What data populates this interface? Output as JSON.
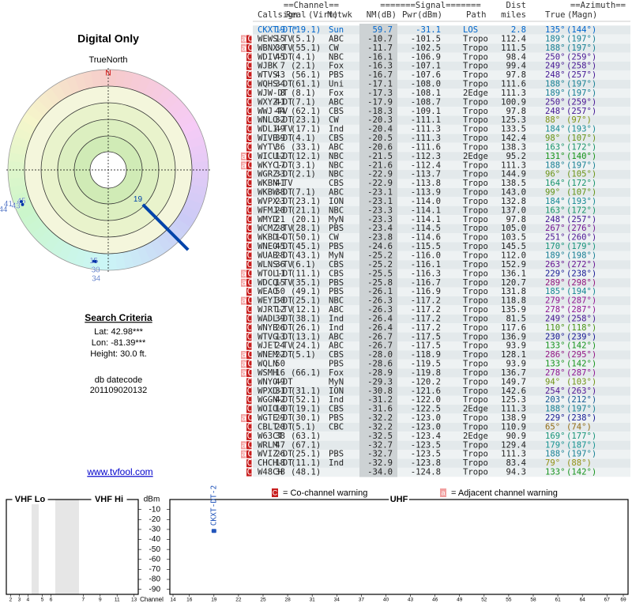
{
  "left": {
    "title": "Digital Only",
    "north_label": "TrueNorth",
    "north": "N",
    "search_title": "Search Criteria",
    "lat": "Lat: 42.98***",
    "lon": "Lon: -81.39***",
    "height": "Height: 30.0 ft.",
    "db_label": "db datecode",
    "db_code": "201109020132",
    "link": "www.tvfool.com"
  },
  "polar": {
    "markers": [
      {
        "label": "19",
        "azimuth": 135
      },
      {
        "label": "15",
        "azimuth": 189
      },
      {
        "label": "30",
        "azimuth": 188
      },
      {
        "label": "34",
        "azimuth": 188
      },
      {
        "label": "45",
        "azimuth": 250
      },
      {
        "label": "43",
        "azimuth": 248
      },
      {
        "label": "41",
        "azimuth": 250
      },
      {
        "label": "44",
        "azimuth": 248
      }
    ]
  },
  "table": {
    "group_headers": [
      "==Channel==",
      "=======Signal=======",
      "Dist",
      "==Azimuth=="
    ],
    "columns": [
      "Callsign",
      "Real",
      "(Virt)",
      "Netwk",
      "NM(dB)",
      "Pwr(dBm)",
      "Path",
      "miles",
      "True",
      "(Magn)"
    ],
    "rows": [
      {
        "callsign": "CKXT-DT*",
        "real": "19",
        "virt": "(19.1)",
        "netwk": "Sun",
        "nm": "59.7",
        "pwr": "-31.1",
        "path": "LOS",
        "dist": "2.8",
        "true": "135°",
        "magn": "(144°)"
      },
      {
        "flags": "aC",
        "callsign": "WEWS-TV",
        "real": "15",
        "virt": "(5.1)",
        "netwk": "ABC",
        "nm": "-10.7",
        "pwr": "-101.5",
        "path": "Tropo",
        "dist": "112.4",
        "true": "189°",
        "magn": "(197°)"
      },
      {
        "flags": "aC",
        "callsign": "WBNX-TV",
        "real": "30",
        "virt": "(55.1)",
        "netwk": "CW",
        "nm": "-11.7",
        "pwr": "-102.5",
        "path": "Tropo",
        "dist": "111.5",
        "true": "188°",
        "magn": "(197°)"
      },
      {
        "flags": "C",
        "callsign": "WDIV-DT",
        "real": "45",
        "virt": "(4.1)",
        "netwk": "NBC",
        "nm": "-16.1",
        "pwr": "-106.9",
        "path": "Tropo",
        "dist": "98.4",
        "true": "250°",
        "magn": "(259°)"
      },
      {
        "flags": "C",
        "callsign": "WJBK",
        "real": "7",
        "virt": "(2.1)",
        "netwk": "Fox",
        "nm": "-16.3",
        "pwr": "-107.1",
        "path": "Tropo",
        "dist": "99.4",
        "true": "249°",
        "magn": "(258°)"
      },
      {
        "flags": "C",
        "callsign": "WTVS",
        "real": "43",
        "virt": "(56.1)",
        "netwk": "PBS",
        "nm": "-16.7",
        "pwr": "-107.6",
        "path": "Tropo",
        "dist": "97.8",
        "true": "248°",
        "magn": "(257°)"
      },
      {
        "flags": "C",
        "callsign": "WQHS-DT",
        "real": "34",
        "virt": "(61.1)",
        "netwk": "Uni",
        "nm": "-17.1",
        "pwr": "-108.0",
        "path": "Tropo",
        "dist": "111.6",
        "true": "188°",
        "magn": "(197°)"
      },
      {
        "flags": "C",
        "callsign": "WJW-DT",
        "real": "8",
        "virt": "(8.1)",
        "netwk": "Fox",
        "nm": "-17.3",
        "pwr": "-108.1",
        "path": "2Edge",
        "dist": "111.3",
        "true": "189°",
        "magn": "(197°)"
      },
      {
        "flags": "C",
        "callsign": "WXYZ-DT",
        "real": "41",
        "virt": "(7.1)",
        "netwk": "ABC",
        "nm": "-17.9",
        "pwr": "-108.7",
        "path": "Tropo",
        "dist": "100.9",
        "true": "250°",
        "magn": "(259°)"
      },
      {
        "flags": "C",
        "callsign": "WWJ-TV",
        "real": "44",
        "virt": "(62.1)",
        "netwk": "CBS",
        "nm": "-18.3",
        "pwr": "-109.1",
        "path": "Tropo",
        "dist": "97.8",
        "true": "248°",
        "magn": "(257°)"
      },
      {
        "flags": "C",
        "callsign": "WNLO-DT",
        "real": "32",
        "virt": "(23.1)",
        "netwk": "CW",
        "nm": "-20.3",
        "pwr": "-111.1",
        "path": "Tropo",
        "dist": "125.3",
        "true": "88°",
        "magn": "(97°)"
      },
      {
        "flags": "C",
        "callsign": "WDLI-TV",
        "real": "49",
        "virt": "(17.1)",
        "netwk": "Ind",
        "nm": "-20.4",
        "pwr": "-111.3",
        "path": "Tropo",
        "dist": "133.5",
        "true": "184°",
        "magn": "(193°)"
      },
      {
        "flags": "C",
        "callsign": "WIVB-DT",
        "real": "39",
        "virt": "(4.1)",
        "netwk": "CBS",
        "nm": "-20.5",
        "pwr": "-111.3",
        "path": "Tropo",
        "dist": "142.4",
        "true": "98°",
        "magn": "(107°)"
      },
      {
        "flags": "C",
        "callsign": "WYTV",
        "real": "36",
        "virt": "(33.1)",
        "netwk": "ABC",
        "nm": "-20.6",
        "pwr": "-111.6",
        "path": "Tropo",
        "dist": "138.3",
        "true": "163°",
        "magn": "(172°)"
      },
      {
        "flags": "aC",
        "callsign": "WICU-DT",
        "real": "12",
        "virt": "(12.1)",
        "netwk": "NBC",
        "nm": "-21.5",
        "pwr": "-112.3",
        "path": "2Edge",
        "dist": "95.2",
        "true": "131°",
        "magn": "(140°)"
      },
      {
        "flags": "aC",
        "callsign": "WKYC-DT",
        "real": "17",
        "virt": "(3.1)",
        "netwk": "NBC",
        "nm": "-21.6",
        "pwr": "-112.4",
        "path": "Tropo",
        "dist": "111.3",
        "true": "188°",
        "magn": "(197°)"
      },
      {
        "flags": "C",
        "callsign": "WGRZ-DT",
        "real": "33",
        "virt": "(2.1)",
        "netwk": "NBC",
        "nm": "-22.9",
        "pwr": "-113.7",
        "path": "Tropo",
        "dist": "144.9",
        "true": "96°",
        "magn": "(105°)"
      },
      {
        "flags": "C",
        "callsign": "WKBN-TV",
        "real": "41",
        "netwk": "CBS",
        "nm": "-22.9",
        "pwr": "-113.8",
        "path": "Tropo",
        "dist": "138.5",
        "true": "164°",
        "magn": "(172°)"
      },
      {
        "flags": "C",
        "callsign": "WKBW-DT",
        "real": "38",
        "virt": "(7.1)",
        "netwk": "ABC",
        "nm": "-23.1",
        "pwr": "-113.9",
        "path": "Tropo",
        "dist": "143.0",
        "true": "99°",
        "magn": "(107°)"
      },
      {
        "flags": "C",
        "callsign": "WVPX-DT",
        "real": "23",
        "virt": "(23.1)",
        "netwk": "ION",
        "nm": "-23.1",
        "pwr": "-114.0",
        "path": "Tropo",
        "dist": "132.8",
        "true": "184°",
        "magn": "(193°)"
      },
      {
        "flags": "C",
        "callsign": "WFMJ-DT",
        "real": "20",
        "virt": "(21.1)",
        "netwk": "NBC",
        "nm": "-23.3",
        "pwr": "-114.1",
        "path": "Tropo",
        "dist": "137.0",
        "true": "163°",
        "magn": "(172°)"
      },
      {
        "flags": "C",
        "callsign": "WMYD",
        "real": "21",
        "virt": "(20.1)",
        "netwk": "MyN",
        "nm": "-23.3",
        "pwr": "-114.1",
        "path": "Tropo",
        "dist": "97.8",
        "true": "248°",
        "magn": "(257°)"
      },
      {
        "flags": "C",
        "callsign": "WCMZ-TV",
        "real": "28",
        "virt": "(28.1)",
        "netwk": "PBS",
        "nm": "-23.4",
        "pwr": "-114.5",
        "path": "Tropo",
        "dist": "105.0",
        "true": "267°",
        "magn": "(276°)"
      },
      {
        "flags": "C",
        "callsign": "WKBD-DT",
        "real": "14",
        "virt": "(50.1)",
        "netwk": "CW",
        "nm": "-23.8",
        "pwr": "-114.6",
        "path": "Tropo",
        "dist": "103.5",
        "true": "251°",
        "magn": "(260°)"
      },
      {
        "flags": "C",
        "callsign": "WNEO-DT",
        "real": "45",
        "virt": "(45.1)",
        "netwk": "PBS",
        "nm": "-24.6",
        "pwr": "-115.5",
        "path": "Tropo",
        "dist": "145.5",
        "true": "170°",
        "magn": "(179°)"
      },
      {
        "flags": "C",
        "callsign": "WUAB-DT",
        "real": "28",
        "virt": "(43.1)",
        "netwk": "MyN",
        "nm": "-25.2",
        "pwr": "-116.0",
        "path": "Tropo",
        "dist": "112.0",
        "true": "189°",
        "magn": "(198°)"
      },
      {
        "flags": "C",
        "callsign": "WLNS-TV",
        "real": "36",
        "virt": "(6.1)",
        "netwk": "CBS",
        "nm": "-25.2",
        "pwr": "-116.1",
        "path": "Tropo",
        "dist": "152.9",
        "true": "263°",
        "magn": "(272°)"
      },
      {
        "flags": "aC",
        "callsign": "WTOL-DT",
        "real": "11",
        "virt": "(11.1)",
        "netwk": "CBS",
        "nm": "-25.5",
        "pwr": "-116.3",
        "path": "Tropo",
        "dist": "136.1",
        "true": "229°",
        "magn": "(238°)"
      },
      {
        "flags": "aC",
        "callsign": "WDCQ-TV",
        "real": "15",
        "virt": "(35.1)",
        "netwk": "PBS",
        "nm": "-25.8",
        "pwr": "-116.7",
        "path": "Tropo",
        "dist": "120.7",
        "true": "289°",
        "magn": "(298°)"
      },
      {
        "flags": "C",
        "callsign": "WEAO",
        "real": "50",
        "virt": "(49.1)",
        "netwk": "PBS",
        "nm": "-26.1",
        "pwr": "-116.9",
        "path": "Tropo",
        "dist": "131.8",
        "true": "185°",
        "magn": "(194°)"
      },
      {
        "flags": "aC",
        "callsign": "WEYI-DT",
        "real": "30",
        "virt": "(25.1)",
        "netwk": "NBC",
        "nm": "-26.3",
        "pwr": "-117.2",
        "path": "Tropo",
        "dist": "118.8",
        "true": "279°",
        "magn": "(287°)"
      },
      {
        "flags": "C",
        "callsign": "WJRT-TV",
        "real": "12",
        "virt": "(12.1)",
        "netwk": "ABC",
        "nm": "-26.3",
        "pwr": "-117.2",
        "path": "Tropo",
        "dist": "135.9",
        "true": "278°",
        "magn": "(287°)"
      },
      {
        "flags": "C",
        "callsign": "WADL-DT",
        "real": "39",
        "virt": "(38.1)",
        "netwk": "Ind",
        "nm": "-26.4",
        "pwr": "-117.2",
        "path": "Tropo",
        "dist": "81.5",
        "true": "249°",
        "magn": "(258°)"
      },
      {
        "flags": "C",
        "callsign": "WNYB-DT",
        "real": "26",
        "virt": "(26.1)",
        "netwk": "Ind",
        "nm": "-26.4",
        "pwr": "-117.2",
        "path": "Tropo",
        "dist": "117.6",
        "true": "110°",
        "magn": "(118°)"
      },
      {
        "flags": "C",
        "callsign": "WTVG-DT",
        "real": "13",
        "virt": "(13.1)",
        "netwk": "ABC",
        "nm": "-26.7",
        "pwr": "-117.5",
        "path": "Tropo",
        "dist": "136.9",
        "true": "230°",
        "magn": "(239°)"
      },
      {
        "flags": "C",
        "callsign": "WJET-TV",
        "real": "24",
        "virt": "(24.1)",
        "netwk": "ABC",
        "nm": "-26.7",
        "pwr": "-117.5",
        "path": "Tropo",
        "dist": "93.9",
        "true": "133°",
        "magn": "(142°)"
      },
      {
        "flags": "aC",
        "callsign": "WNEM-DT",
        "real": "22",
        "virt": "(5.1)",
        "netwk": "CBS",
        "nm": "-28.0",
        "pwr": "-118.9",
        "path": "Tropo",
        "dist": "128.1",
        "true": "286°",
        "magn": "(295°)"
      },
      {
        "flags": "aC",
        "callsign": "WQLN",
        "real": "50",
        "netwk": "PBS",
        "nm": "-28.6",
        "pwr": "-119.5",
        "path": "Tropo",
        "dist": "93.9",
        "true": "133°",
        "magn": "(142°)"
      },
      {
        "flags": "aC",
        "callsign": "WSMH",
        "real": "16",
        "virt": "(66.1)",
        "netwk": "Fox",
        "nm": "-28.9",
        "pwr": "-119.8",
        "path": "Tropo",
        "dist": "136.7",
        "true": "278°",
        "magn": "(287°)"
      },
      {
        "flags": "C",
        "callsign": "WNYO-DT",
        "real": "49",
        "netwk": "MyN",
        "nm": "-29.3",
        "pwr": "-120.2",
        "path": "Tropo",
        "dist": "149.7",
        "true": "94°",
        "magn": "(103°)"
      },
      {
        "flags": "C",
        "callsign": "WPXD-DT",
        "real": "31",
        "virt": "(31.1)",
        "netwk": "ION",
        "nm": "-30.8",
        "pwr": "-121.6",
        "path": "Tropo",
        "dist": "142.6",
        "true": "254°",
        "magn": "(263°)"
      },
      {
        "flags": "C",
        "callsign": "WGGN-DT",
        "real": "42",
        "virt": "(52.1)",
        "netwk": "Ind",
        "nm": "-31.2",
        "pwr": "-122.0",
        "path": "Tropo",
        "dist": "125.3",
        "true": "203°",
        "magn": "(212°)"
      },
      {
        "flags": "C",
        "callsign": "WOIO-DT",
        "real": "10",
        "virt": "(19.1)",
        "netwk": "CBS",
        "nm": "-31.6",
        "pwr": "-122.5",
        "path": "2Edge",
        "dist": "111.3",
        "true": "188°",
        "magn": "(197°)"
      },
      {
        "flags": "aC",
        "callsign": "WGTE-DT",
        "real": "29",
        "virt": "(30.1)",
        "netwk": "PBS",
        "nm": "-32.2",
        "pwr": "-123.0",
        "path": "Tropo",
        "dist": "138.9",
        "true": "229°",
        "magn": "(238°)"
      },
      {
        "flags": "C",
        "callsign": "CBLT-DT",
        "real": "20",
        "virt": "(5.1)",
        "netwk": "CBC",
        "nm": "-32.2",
        "pwr": "-123.0",
        "path": "Tropo",
        "dist": "110.9",
        "true": "65°",
        "magn": "(74°)"
      },
      {
        "flags": "C",
        "callsign": "W63CT",
        "real": "38",
        "virt": "(63.1)",
        "nm": "-32.5",
        "pwr": "-123.4",
        "path": "2Edge",
        "dist": "90.9",
        "true": "169°",
        "magn": "(177°)"
      },
      {
        "flags": "aC",
        "callsign": "WRLM",
        "real": "47",
        "virt": "(67.1)",
        "nm": "-32.7",
        "pwr": "-123.5",
        "path": "Tropo",
        "dist": "129.4",
        "true": "179°",
        "magn": "(187°)"
      },
      {
        "flags": "aC",
        "callsign": "WVIZ-DT",
        "real": "26",
        "virt": "(25.1)",
        "netwk": "PBS",
        "nm": "-32.7",
        "pwr": "-123.5",
        "path": "Tropo",
        "dist": "111.3",
        "true": "188°",
        "magn": "(197°)"
      },
      {
        "flags": "C",
        "callsign": "CHCH-DT",
        "real": "18",
        "virt": "(11.1)",
        "netwk": "Ind",
        "nm": "-32.9",
        "pwr": "-123.8",
        "path": "Tropo",
        "dist": "83.4",
        "true": "79°",
        "magn": "(88°)"
      },
      {
        "flags": "C",
        "callsign": "W48CH",
        "real": "38",
        "virt": "(48.1)",
        "nm": "-34.0",
        "pwr": "-124.8",
        "path": "Tropo",
        "dist": "94.3",
        "true": "133°",
        "magn": "(142°)"
      }
    ]
  },
  "legend": {
    "co": "C",
    "co_text": "= Co-channel warning",
    "adj": "a",
    "adj_text": "= Adjacent channel warning"
  },
  "spectrum": {
    "dbm_label": "dBm",
    "channel_label": "Channel",
    "ylim": [
      -95,
      0
    ],
    "yticks": [
      -10,
      -20,
      -30,
      -40,
      -50,
      -60,
      -70,
      -80,
      -90
    ],
    "bands": [
      {
        "name": "VHF Lo",
        "channels": [
          2,
          3,
          4,
          5,
          6
        ]
      },
      {
        "name": "VHF Hi",
        "channels": [
          7,
          9,
          11,
          13
        ]
      },
      {
        "name": "UHF",
        "channels": [
          14,
          16,
          19,
          22,
          25,
          28,
          31,
          34,
          37,
          40,
          43,
          46,
          49,
          52,
          55,
          58,
          61,
          64,
          67,
          69
        ]
      }
    ],
    "stations": [
      {
        "label": "CKXT-DT-2",
        "channel": 19,
        "dbm": -31.1
      }
    ]
  }
}
